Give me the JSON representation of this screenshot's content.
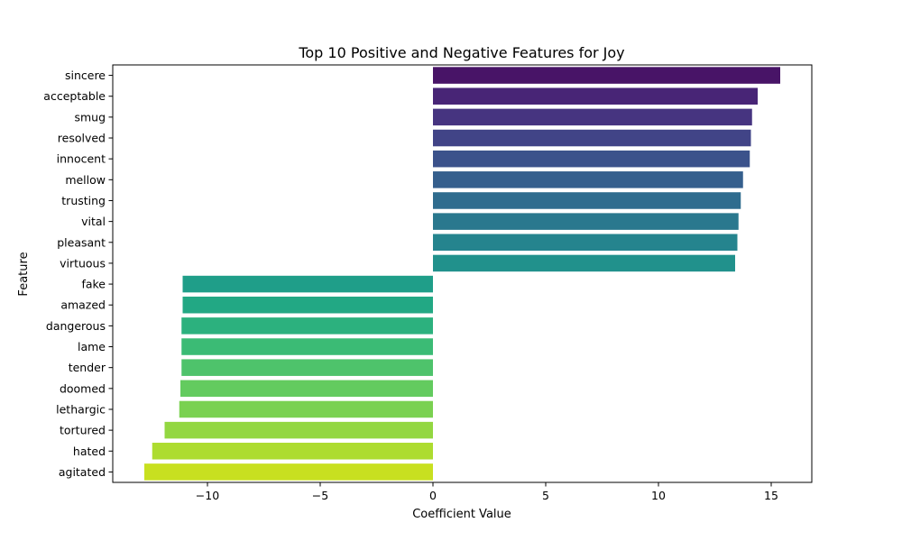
{
  "chart_data": {
    "type": "bar",
    "orientation": "horizontal",
    "title": "Top 10 Positive and Negative Features for Joy",
    "xlabel": "Coefficient Value",
    "ylabel": "Feature",
    "xlim": [
      -14.2,
      16.8
    ],
    "xticks": [
      -10,
      -5,
      0,
      5,
      10,
      15
    ],
    "xtick_labels": [
      "−10",
      "−5",
      "0",
      "5",
      "10",
      "15"
    ],
    "grid": false,
    "palette": "viridis",
    "categories": [
      "sincere",
      "acceptable",
      "smug",
      "resolved",
      "innocent",
      "mellow",
      "trusting",
      "vital",
      "pleasant",
      "virtuous",
      "fake",
      "amazed",
      "dangerous",
      "lame",
      "tender",
      "doomed",
      "lethargic",
      "tortured",
      "hated",
      "agitated"
    ],
    "values": [
      15.4,
      14.4,
      14.15,
      14.1,
      14.05,
      13.75,
      13.65,
      13.55,
      13.5,
      13.4,
      -11.1,
      -11.1,
      -11.15,
      -11.15,
      -11.15,
      -11.2,
      -11.25,
      -11.9,
      -12.45,
      -12.8
    ],
    "colors": [
      "#481467",
      "#482576",
      "#463480",
      "#414487",
      "#3b528b",
      "#355f8d",
      "#2f6c8e",
      "#2a788e",
      "#25848e",
      "#21918c",
      "#1f9e89",
      "#22a884",
      "#2cb17e",
      "#3bbb75",
      "#4ec36b",
      "#63cb5f",
      "#7ad151",
      "#93d741",
      "#addc30",
      "#c8e020"
    ]
  }
}
